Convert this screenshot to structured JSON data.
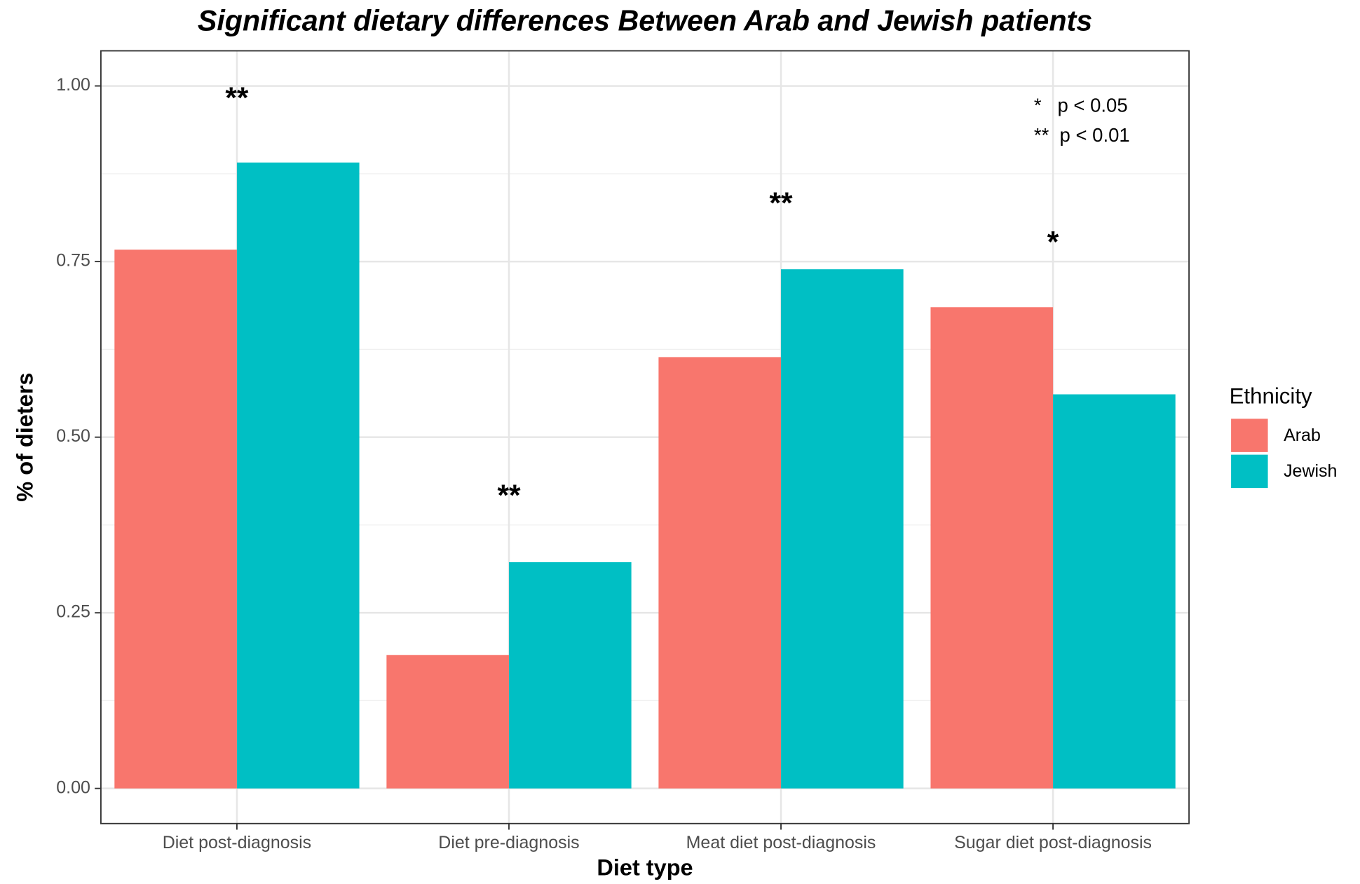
{
  "chart_data": {
    "type": "bar",
    "title": "Significant dietary differences Between Arab and Jewish patients",
    "x_label": "Diet type",
    "y_label": "% of dieters",
    "categories": [
      "Diet post-diagnosis",
      "Diet pre-diagnosis",
      "Meat diet post-diagnosis",
      "Sugar diet post-diagnosis"
    ],
    "series": [
      {
        "name": "Arab",
        "color": "#f8766d",
        "values": [
          0.767,
          0.19,
          0.614,
          0.685
        ]
      },
      {
        "name": "Jewish",
        "color": "#00bfc4",
        "values": [
          0.891,
          0.322,
          0.739,
          0.561
        ]
      }
    ],
    "ylim": [
      -0.05,
      1.05
    ],
    "yticks": [
      {
        "value": 0,
        "label": "0.00"
      },
      {
        "value": 0.25,
        "label": "0.25"
      },
      {
        "value": 0.5,
        "label": "0.50"
      },
      {
        "value": 0.75,
        "label": "0.75"
      },
      {
        "value": 1,
        "label": "1.00"
      }
    ],
    "y_minor_ticks": [
      0.125,
      0.375,
      0.625,
      0.875
    ],
    "grid": true,
    "legend_title": "Ethnicity",
    "legend_position": "right",
    "annotations": [
      {
        "text": "**",
        "category": 0,
        "y": 0.99
      },
      {
        "text": "**",
        "category": 1,
        "y": 0.424
      },
      {
        "text": "**",
        "category": 2,
        "y": 0.84
      },
      {
        "text": "*",
        "category": 3,
        "y": 0.785
      }
    ],
    "notes": [
      "*   p < 0.05",
      "**  p < 0.01"
    ]
  }
}
